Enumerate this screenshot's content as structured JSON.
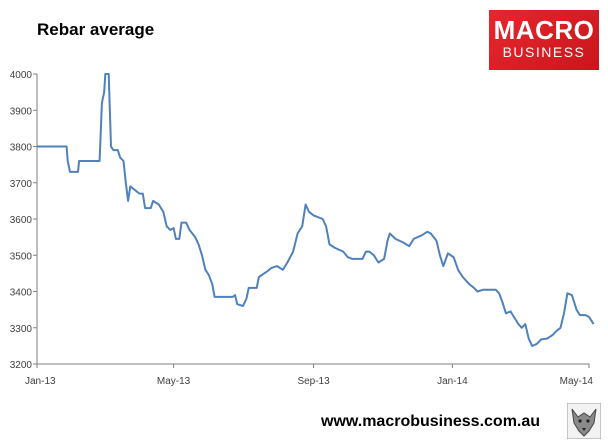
{
  "header": {
    "title": "Rebar average"
  },
  "logo": {
    "line1": "MACRO",
    "line2": "BUSINESS"
  },
  "footer": {
    "url": "www.macrobusiness.com.au"
  },
  "chart_data": {
    "type": "line",
    "title": "Rebar average",
    "xlabel": "",
    "ylabel": "",
    "ylim": [
      3200,
      4000
    ],
    "yticks": [
      3200,
      3300,
      3400,
      3500,
      3600,
      3700,
      3800,
      3900,
      4000
    ],
    "xticks": [
      "Jan-13",
      "May-13",
      "Sep-13",
      "Jan-14",
      "May-14"
    ],
    "xtick_dates": [
      "2013-01-01",
      "2013-05-01",
      "2013-09-01",
      "2014-01-01",
      "2014-05-01"
    ],
    "grid": false,
    "color": "#4f81bd",
    "series": [
      {
        "name": "",
        "points": [
          [
            "2013-01-01",
            3800
          ],
          [
            "2013-01-27",
            3800
          ],
          [
            "2013-01-28",
            3760
          ],
          [
            "2013-01-30",
            3730
          ],
          [
            "2013-02-06",
            3730
          ],
          [
            "2013-02-07",
            3760
          ],
          [
            "2013-02-25",
            3760
          ],
          [
            "2013-02-27",
            3920
          ],
          [
            "2013-03-01",
            3950
          ],
          [
            "2013-03-02",
            4000
          ],
          [
            "2013-03-05",
            4000
          ],
          [
            "2013-03-07",
            3800
          ],
          [
            "2013-03-09",
            3790
          ],
          [
            "2013-03-13",
            3790
          ],
          [
            "2013-03-15",
            3770
          ],
          [
            "2013-03-18",
            3760
          ],
          [
            "2013-03-20",
            3700
          ],
          [
            "2013-03-22",
            3650
          ],
          [
            "2013-03-24",
            3690
          ],
          [
            "2013-03-28",
            3680
          ],
          [
            "2013-04-01",
            3670
          ],
          [
            "2013-04-04",
            3670
          ],
          [
            "2013-04-06",
            3630
          ],
          [
            "2013-04-11",
            3630
          ],
          [
            "2013-04-13",
            3650
          ],
          [
            "2013-04-18",
            3640
          ],
          [
            "2013-04-22",
            3620
          ],
          [
            "2013-04-25",
            3580
          ],
          [
            "2013-04-28",
            3570
          ],
          [
            "2013-05-01",
            3575
          ],
          [
            "2013-05-03",
            3545
          ],
          [
            "2013-05-06",
            3545
          ],
          [
            "2013-05-08",
            3590
          ],
          [
            "2013-05-12",
            3590
          ],
          [
            "2013-05-15",
            3570
          ],
          [
            "2013-05-20",
            3550
          ],
          [
            "2013-05-23",
            3530
          ],
          [
            "2013-05-26",
            3500
          ],
          [
            "2013-05-29",
            3460
          ],
          [
            "2013-06-01",
            3445
          ],
          [
            "2013-06-04",
            3420
          ],
          [
            "2013-06-06",
            3385
          ],
          [
            "2013-06-12",
            3385
          ],
          [
            "2013-06-22",
            3385
          ],
          [
            "2013-06-24",
            3390
          ],
          [
            "2013-06-26",
            3365
          ],
          [
            "2013-07-01",
            3360
          ],
          [
            "2013-07-04",
            3380
          ],
          [
            "2013-07-06",
            3410
          ],
          [
            "2013-07-13",
            3410
          ],
          [
            "2013-07-15",
            3440
          ],
          [
            "2013-07-22",
            3455
          ],
          [
            "2013-07-26",
            3465
          ],
          [
            "2013-07-31",
            3470
          ],
          [
            "2013-08-05",
            3460
          ],
          [
            "2013-08-09",
            3480
          ],
          [
            "2013-08-14",
            3510
          ],
          [
            "2013-08-18",
            3560
          ],
          [
            "2013-08-22",
            3580
          ],
          [
            "2013-08-25",
            3640
          ],
          [
            "2013-08-28",
            3620
          ],
          [
            "2013-09-01",
            3610
          ],
          [
            "2013-09-09",
            3600
          ],
          [
            "2013-09-12",
            3580
          ],
          [
            "2013-09-15",
            3530
          ],
          [
            "2013-09-20",
            3520
          ],
          [
            "2013-09-27",
            3510
          ],
          [
            "2013-10-01",
            3495
          ],
          [
            "2013-10-05",
            3490
          ],
          [
            "2013-10-14",
            3490
          ],
          [
            "2013-10-17",
            3510
          ],
          [
            "2013-10-20",
            3510
          ],
          [
            "2013-10-24",
            3500
          ],
          [
            "2013-10-28",
            3480
          ],
          [
            "2013-11-02",
            3490
          ],
          [
            "2013-11-05",
            3540
          ],
          [
            "2013-11-07",
            3560
          ],
          [
            "2013-11-12",
            3545
          ],
          [
            "2013-11-19",
            3535
          ],
          [
            "2013-11-24",
            3525
          ],
          [
            "2013-11-28",
            3545
          ],
          [
            "2013-12-05",
            3555
          ],
          [
            "2013-12-10",
            3565
          ],
          [
            "2013-12-13",
            3560
          ],
          [
            "2013-12-18",
            3540
          ],
          [
            "2013-12-21",
            3500
          ],
          [
            "2013-12-24",
            3470
          ],
          [
            "2013-12-28",
            3505
          ],
          [
            "2014-01-02",
            3495
          ],
          [
            "2014-01-06",
            3460
          ],
          [
            "2014-01-10",
            3440
          ],
          [
            "2014-01-16",
            3420
          ],
          [
            "2014-01-20",
            3410
          ],
          [
            "2014-01-23",
            3400
          ],
          [
            "2014-01-28",
            3405
          ],
          [
            "2014-02-08",
            3405
          ],
          [
            "2014-02-11",
            3395
          ],
          [
            "2014-02-14",
            3370
          ],
          [
            "2014-02-17",
            3340
          ],
          [
            "2014-02-21",
            3345
          ],
          [
            "2014-02-24",
            3330
          ],
          [
            "2014-02-28",
            3310
          ],
          [
            "2014-03-03",
            3300
          ],
          [
            "2014-03-06",
            3310
          ],
          [
            "2014-03-09",
            3270
          ],
          [
            "2014-03-12",
            3250
          ],
          [
            "2014-03-16",
            3255
          ],
          [
            "2014-03-20",
            3268
          ],
          [
            "2014-03-25",
            3270
          ],
          [
            "2014-03-30",
            3280
          ],
          [
            "2014-04-02",
            3290
          ],
          [
            "2014-04-06",
            3300
          ],
          [
            "2014-04-09",
            3340
          ],
          [
            "2014-04-12",
            3395
          ],
          [
            "2014-04-16",
            3390
          ],
          [
            "2014-04-20",
            3350
          ],
          [
            "2014-04-23",
            3335
          ],
          [
            "2014-04-28",
            3335
          ],
          [
            "2014-05-01",
            3330
          ],
          [
            "2014-05-05",
            3310
          ]
        ]
      }
    ]
  }
}
